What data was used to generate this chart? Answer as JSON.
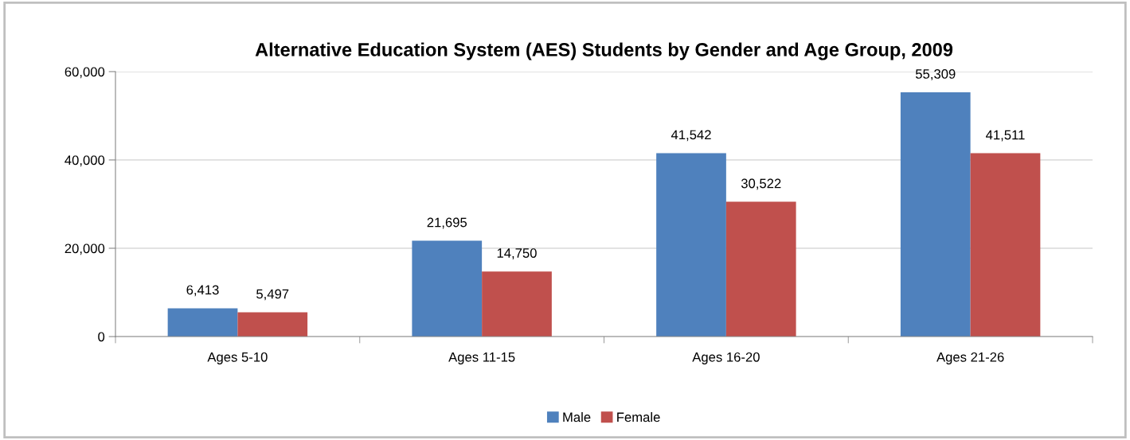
{
  "chart_data": {
    "type": "bar",
    "title": "Alternative Education System (AES) Students by Gender and Age Group, 2009",
    "categories": [
      "Ages 5-10",
      "Ages 11-15",
      "Ages 16-20",
      "Ages 21-26"
    ],
    "series": [
      {
        "name": "Male",
        "color": "#4f81bd",
        "values": [
          6413,
          21695,
          41542,
          55309
        ],
        "value_labels": [
          "6,413",
          "21,695",
          "41,542",
          "55,309"
        ]
      },
      {
        "name": "Female",
        "color": "#c0504d",
        "values": [
          5497,
          14750,
          30522,
          41511
        ],
        "value_labels": [
          "5,497",
          "14,750",
          "30,522",
          "41,511"
        ]
      }
    ],
    "ylim": [
      0,
      60000
    ],
    "yticks": [
      {
        "value": 0,
        "label": "0"
      },
      {
        "value": 20000,
        "label": "20,000"
      },
      {
        "value": 40000,
        "label": "40,000"
      },
      {
        "value": 60000,
        "label": "60,000"
      }
    ],
    "grid": "y",
    "legend": "bottom"
  }
}
